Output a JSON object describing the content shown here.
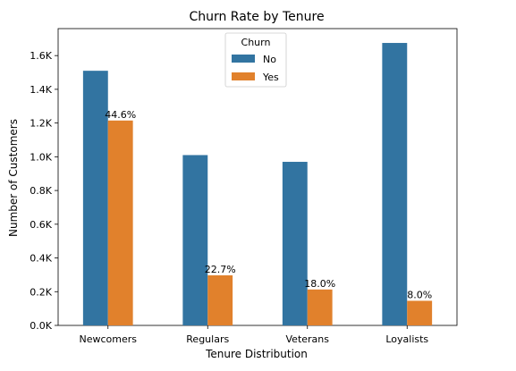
{
  "chart_data": {
    "type": "bar",
    "title": "Churn Rate by Tenure",
    "xlabel": "Tenure Distribution",
    "ylabel": "Number of Customers",
    "categories": [
      "Newcomers",
      "Regulars",
      "Veterans",
      "Loyalists"
    ],
    "series": [
      {
        "name": "No",
        "values": [
          1510,
          1010,
          970,
          1675
        ],
        "color": "#3274a1"
      },
      {
        "name": "Yes",
        "values": [
          1215,
          297,
          213,
          146
        ],
        "color": "#e1812c"
      }
    ],
    "bar_labels": {
      "series": "Yes",
      "labels": [
        "44.6%",
        "22.7%",
        "18.0%",
        "8.0%"
      ]
    },
    "ylim": [
      0,
      1760
    ],
    "yticks": [
      0,
      200,
      400,
      600,
      800,
      1000,
      1200,
      1400,
      1600
    ],
    "ytick_labels": [
      "0.0K",
      "0.2K",
      "0.4K",
      "0.6K",
      "0.8K",
      "1.0K",
      "1.2K",
      "1.4K",
      "1.6K"
    ],
    "legend": {
      "title": "Churn",
      "position": "top-center"
    },
    "grid": false
  }
}
